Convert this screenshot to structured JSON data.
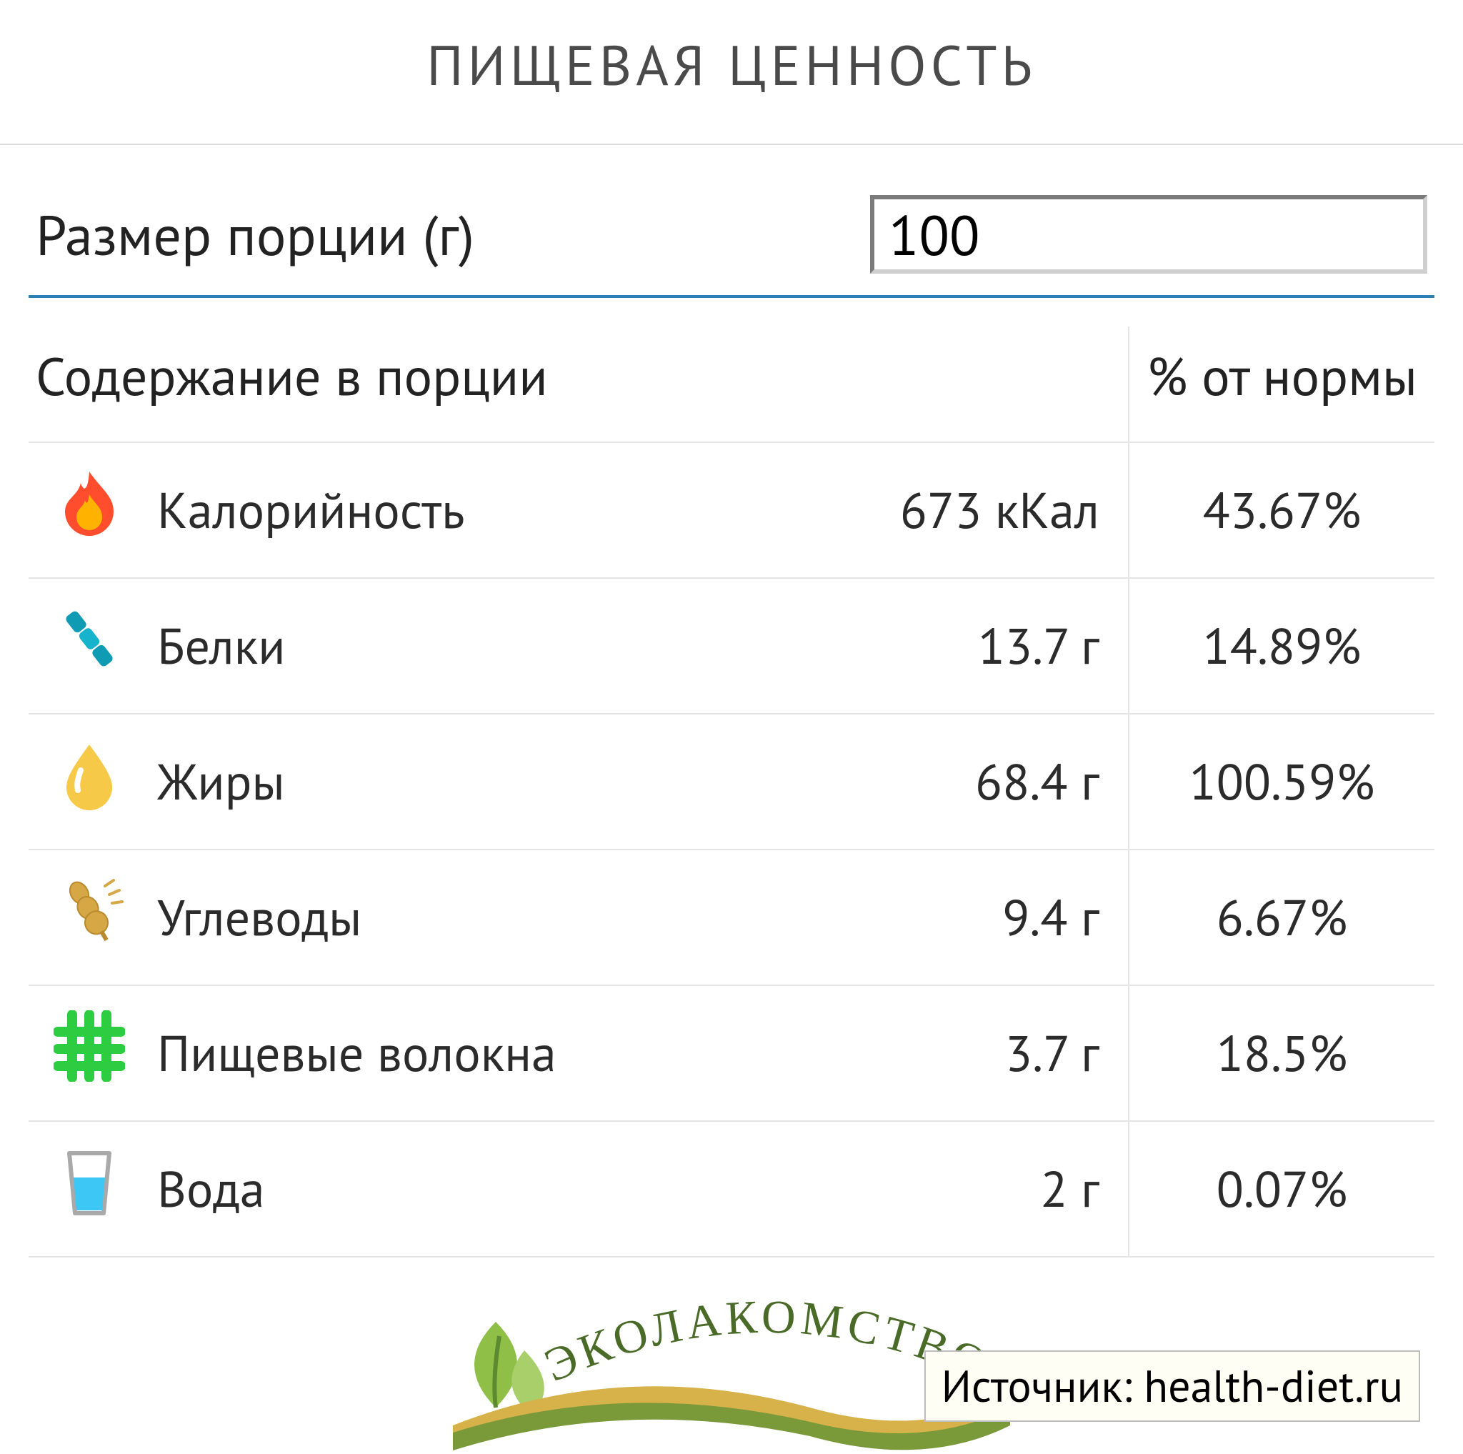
{
  "title": "ПИЩЕВАЯ ЦЕННОСТЬ",
  "portion": {
    "label": "Размер порции (г)",
    "value": "100"
  },
  "headers": {
    "content": "Содержание в порции",
    "percent": "% от нормы"
  },
  "rows": [
    {
      "icon": "calories",
      "name": "Калорийность",
      "value": "673 кКал",
      "percent": "43.67%"
    },
    {
      "icon": "protein",
      "name": "Белки",
      "value": "13.7 г",
      "percent": "14.89%"
    },
    {
      "icon": "fat",
      "name": "Жиры",
      "value": "68.4 г",
      "percent": "100.59%"
    },
    {
      "icon": "carbs",
      "name": "Углеводы",
      "value": "9.4 г",
      "percent": "6.67%"
    },
    {
      "icon": "fiber",
      "name": "Пищевые волокна",
      "value": "3.7 г",
      "percent": "18.5%"
    },
    {
      "icon": "water",
      "name": "Вода",
      "value": "2 г",
      "percent": "0.07%"
    }
  ],
  "brand": "ЭКОЛАКОМСТВО",
  "source": "Источник: health-diet.ru",
  "colors": {
    "accent_blue": "#2d7fb8",
    "rule": "#dcdcdc",
    "rule_soft": "#e4e4e4",
    "icons": {
      "calories_outer": "#ff4d2e",
      "calories_inner": "#ffb300",
      "protein": "#0f9bb3",
      "fat": "#f7c948",
      "carbs": "#d6a745",
      "fiber": "#2ecc40",
      "water_glass": "#a9a9a9",
      "water_fill": "#3cc7f5"
    },
    "brand_leaf": "#8fbf47",
    "brand_wave": "#d7b24a",
    "brand_text": "#4a6b28"
  }
}
